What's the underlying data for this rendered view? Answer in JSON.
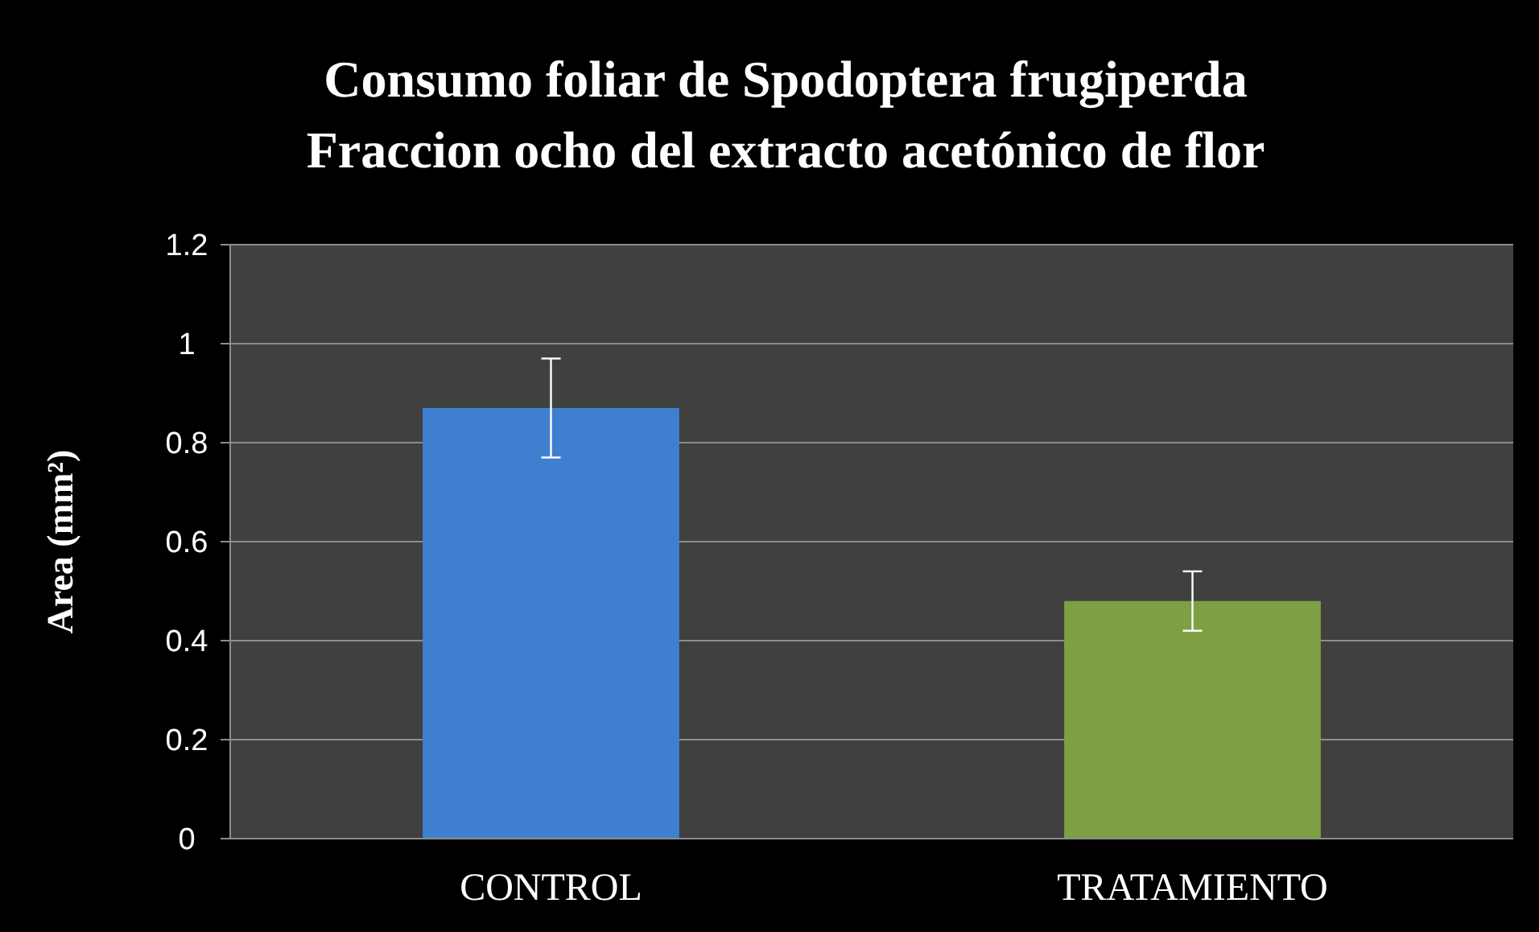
{
  "chart_data": {
    "type": "bar",
    "title": "Consumo foliar de Spodoptera frugiperda",
    "subtitle": "Fraccion ocho  del extracto acetónico  de flor",
    "ylabel": "Area (mm²)",
    "categories": [
      "CONTROL",
      "TRATAMIENTO"
    ],
    "values": [
      0.87,
      0.48
    ],
    "colors": [
      "#3f7fd0",
      "#7f9f45"
    ],
    "errors": [
      [
        0.77,
        0.97
      ],
      [
        0.42,
        0.54
      ]
    ],
    "ylim": [
      0,
      1.2
    ],
    "yticks": [
      0,
      0.2,
      0.4,
      0.6,
      0.8,
      1,
      1.2
    ],
    "grid": "y"
  }
}
